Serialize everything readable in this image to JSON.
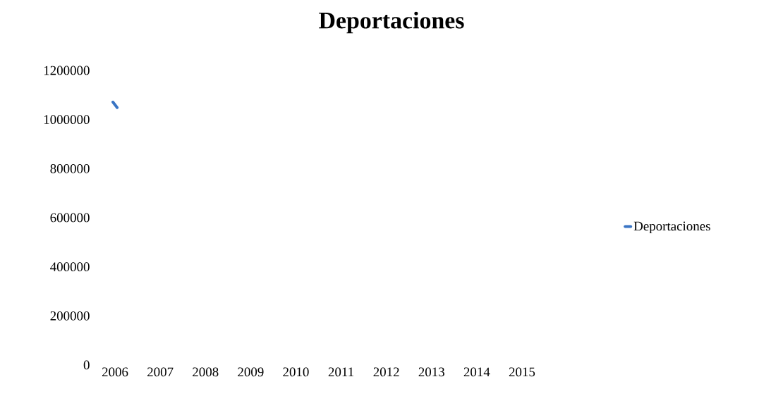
{
  "chart_data": {
    "type": "line",
    "title": "Deportaciones",
    "categories": [
      "2006",
      "2007",
      "2008",
      "2009",
      "2010",
      "2011",
      "2012",
      "2013",
      "2014",
      "2015"
    ],
    "series": [
      {
        "name": "Deportaciones",
        "color": "#3a75c4",
        "values": [
          1060000,
          null,
          null,
          null,
          null,
          null,
          null,
          null,
          null,
          null
        ]
      }
    ],
    "ylim": [
      0,
      1200000
    ],
    "yticks": [
      0,
      200000,
      400000,
      600000,
      800000,
      1000000,
      1200000
    ],
    "legend": "right",
    "marker": "cross"
  }
}
